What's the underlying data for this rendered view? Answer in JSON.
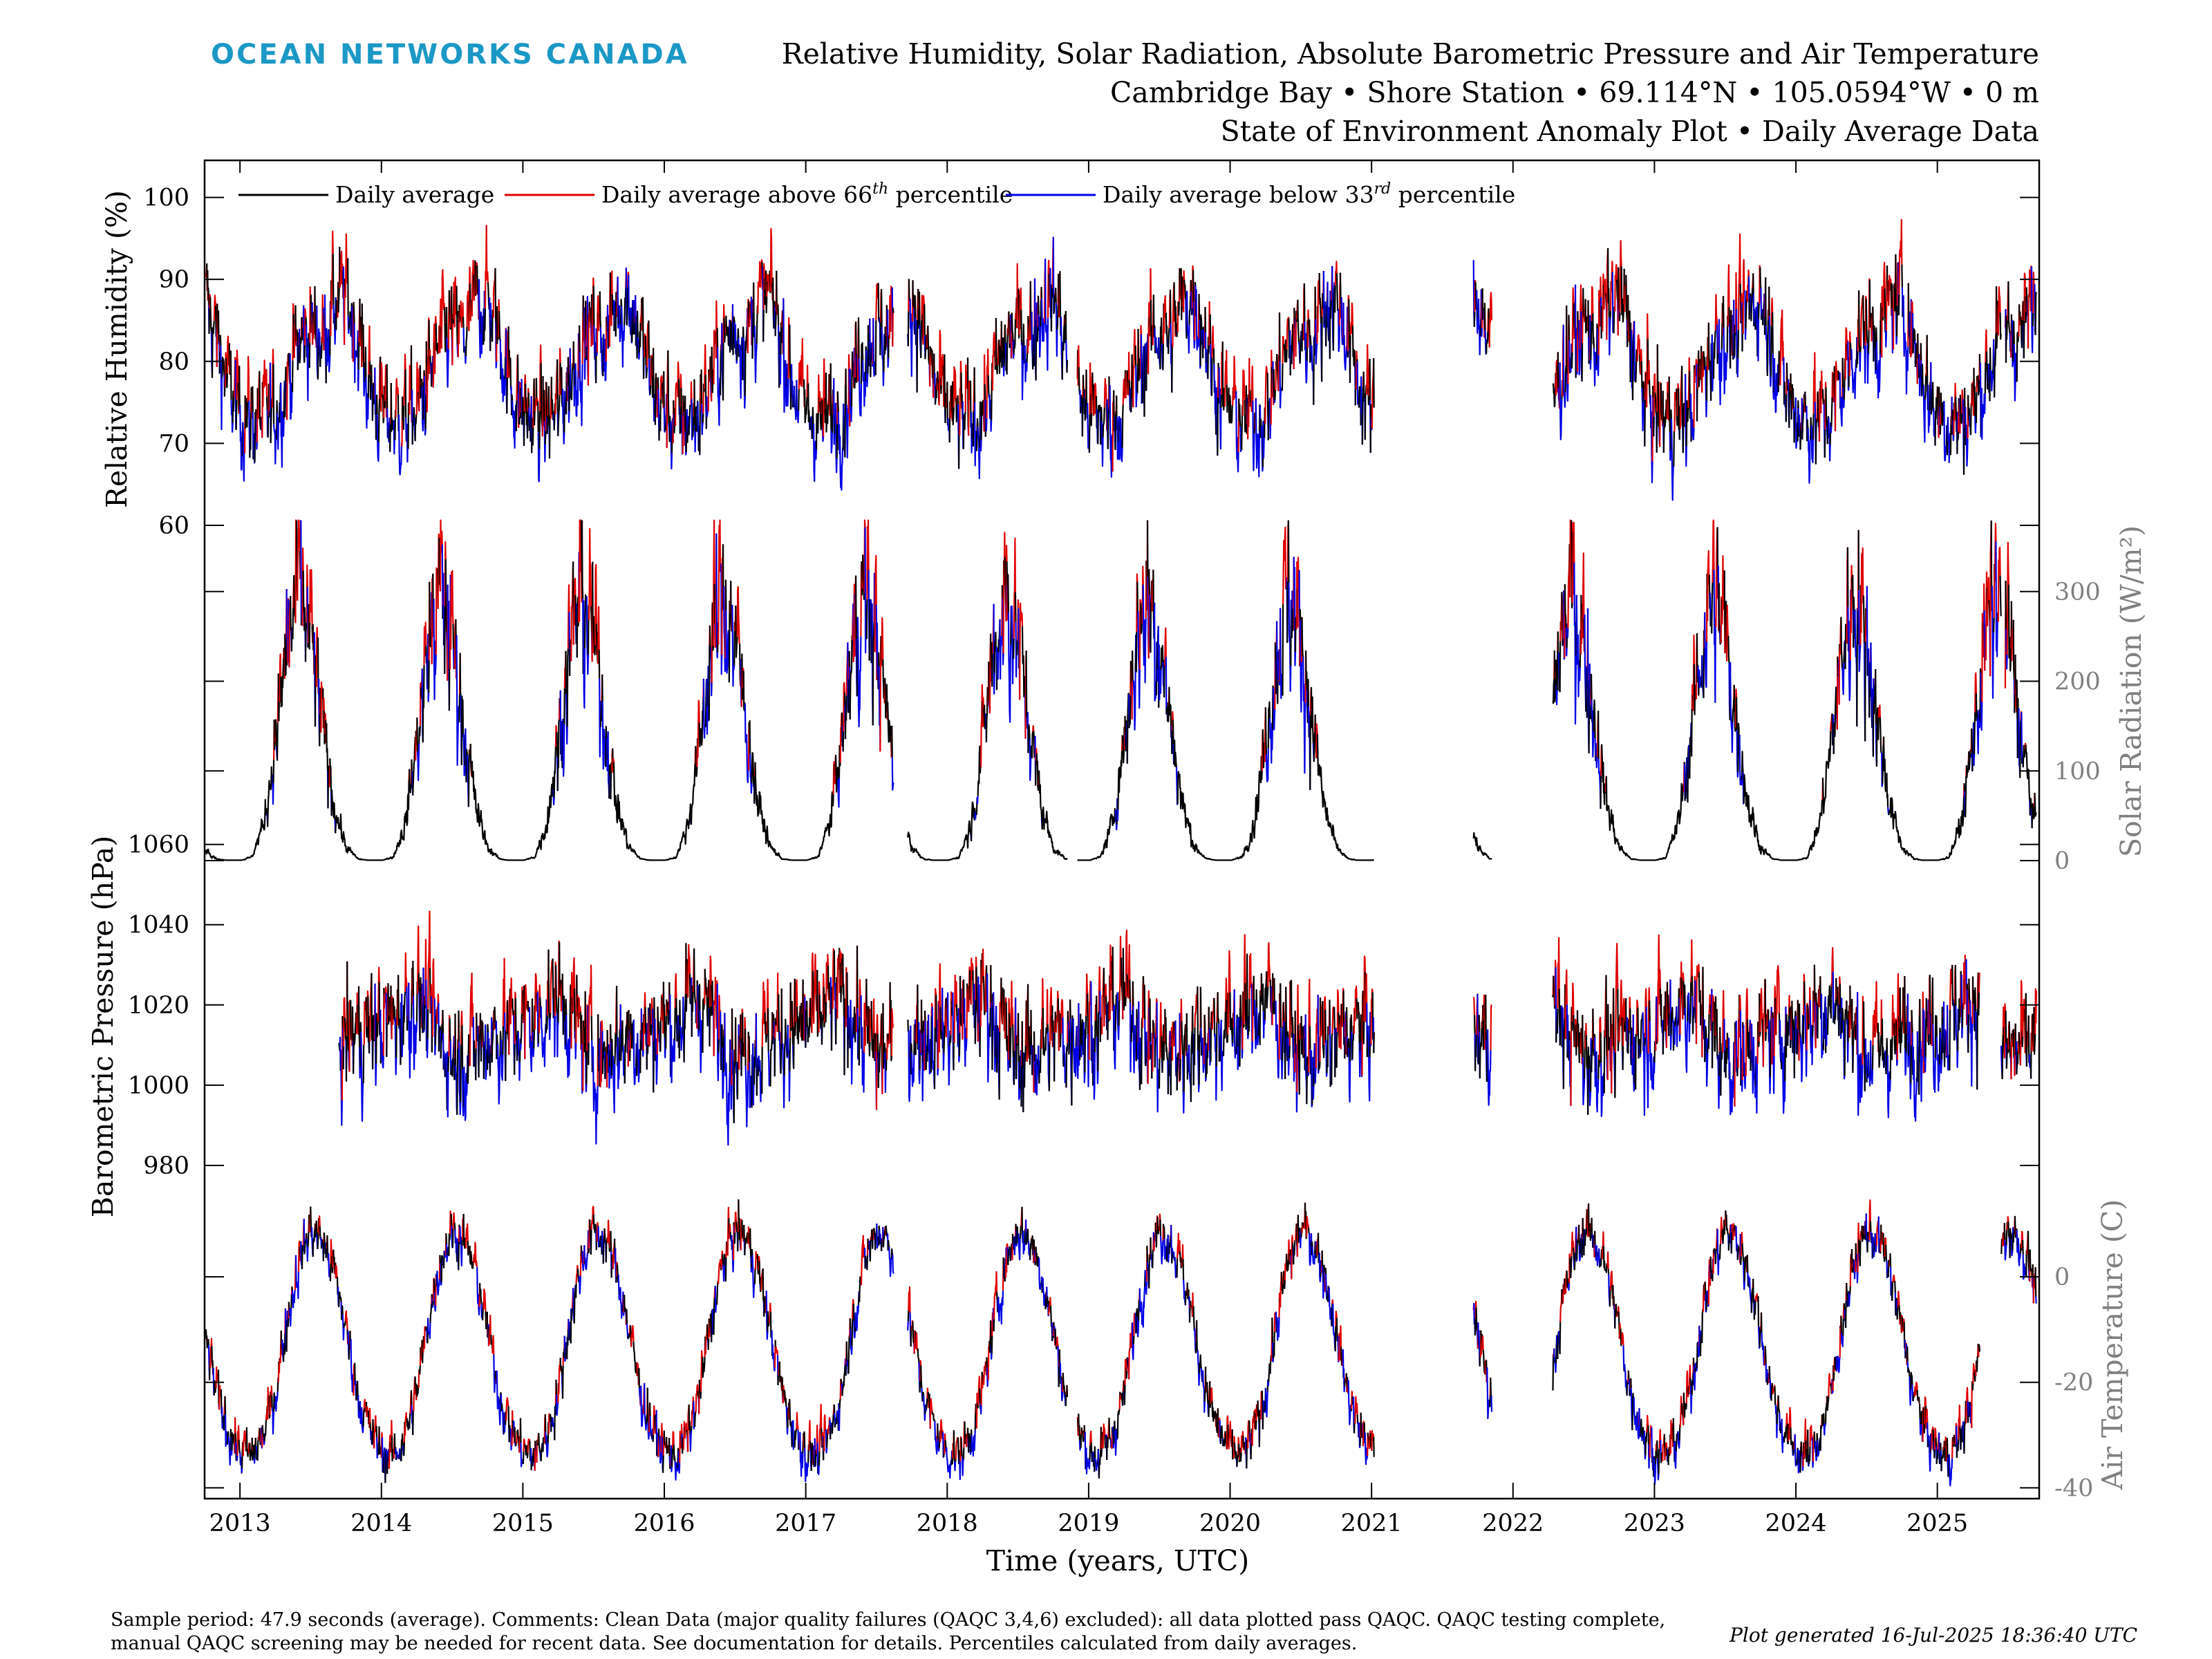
{
  "header": {
    "brand": "OCEAN NETWORKS CANADA",
    "title_lines": [
      "Relative Humidity, Solar Radiation, Absolute Barometric Pressure and Air Temperature",
      "Cambridge Bay • Shore Station • 69.114°N • 105.0594°W • 0 m",
      "State of Environment Anomaly Plot • Daily Average Data"
    ]
  },
  "legend": [
    {
      "label": "Daily average",
      "color": "#000000"
    },
    {
      "label": "Daily average above 66",
      "sup": "th",
      "suffix": " percentile",
      "color": "#e00000"
    },
    {
      "label": "Daily average below 33",
      "sup": "rd",
      "suffix": " percentile",
      "color": "#0000e6"
    }
  ],
  "footer": {
    "line1": "Sample period: 47.9 seconds (average). Comments: Clean Data (major quality failures (QAQC 3,4,6) excluded): all data plotted pass QAQC. QAQC testing complete,",
    "line2": "manual QAQC screening may be needed for recent data. See documentation for details. Percentiles calculated from daily averages.",
    "generated": "Plot generated 16-Jul-2025 18:36:40 UTC"
  },
  "colors": {
    "average": "#000000",
    "above": "#e00000",
    "below": "#0000e6",
    "right_axis": "#808080",
    "brand": "#1b98c5"
  },
  "chart_data": [
    {
      "type": "line",
      "name": "humidity",
      "ylabel": "Relative Humidity (%)",
      "y_axis_side": "left",
      "ylim": [
        60,
        103
      ],
      "yticks": [
        60,
        70,
        80,
        90,
        100
      ],
      "xlim": [
        2012.75,
        2025.72
      ],
      "data_gaps": [
        [
          2017.62,
          2017.72
        ],
        [
          2018.85,
          2018.92
        ],
        [
          2021.02,
          2021.72
        ],
        [
          2021.85,
          2022.28
        ],
        [
          2025.45,
          2025.48
        ]
      ],
      "seasonal_profile": {
        "month_start": "Jan",
        "values": [
          74,
          73,
          73,
          74,
          78,
          82,
          84,
          83,
          87,
          88,
          83,
          77
        ]
      },
      "day_to_day_variability": 4,
      "series_meaning": {
        "black": "daily average",
        "red": "above 66th percentile",
        "blue": "below 33rd percentile"
      }
    },
    {
      "type": "line",
      "name": "solar",
      "ylabel": "Solar Radiation (W/m²)",
      "y_axis_side": "right",
      "ylim": [
        0,
        380
      ],
      "yticks": [
        0,
        100,
        200,
        300
      ],
      "xlim": [
        2012.75,
        2025.72
      ],
      "data_gaps": [
        [
          2017.62,
          2017.72
        ],
        [
          2018.85,
          2018.92
        ],
        [
          2021.02,
          2021.72
        ],
        [
          2021.85,
          2022.28
        ],
        [
          2025.45,
          2025.48
        ]
      ],
      "seasonal_profile": {
        "month_start": "Jan",
        "values": [
          0,
          4,
          40,
          130,
          240,
          300,
          250,
          150,
          60,
          15,
          2,
          0
        ]
      },
      "day_to_day_variability": 45,
      "series_meaning": {
        "black": "daily average",
        "red": "above 66th percentile",
        "blue": "below 33rd percentile"
      }
    },
    {
      "type": "line",
      "name": "pressure",
      "ylabel": "Barometric Pressure (hPa)",
      "y_axis_side": "left",
      "ylim": [
        975,
        1062
      ],
      "yticks": [
        980,
        1000,
        1020,
        1040,
        1060
      ],
      "xlim": [
        2012.75,
        2025.72
      ],
      "data_start": 2013.7,
      "data_gaps": [
        [
          2017.62,
          2017.72
        ],
        [
          2021.02,
          2021.72
        ],
        [
          2021.85,
          2022.28
        ],
        [
          2025.3,
          2025.45
        ]
      ],
      "seasonal_profile": {
        "month_start": "Jan",
        "values": [
          1015,
          1016,
          1020,
          1022,
          1018,
          1012,
          1008,
          1008,
          1010,
          1012,
          1013,
          1014
        ]
      },
      "day_to_day_variability": 9,
      "series_meaning": {
        "black": "daily average",
        "red": "above 66th percentile",
        "blue": "below 33rd percentile"
      }
    },
    {
      "type": "line",
      "name": "temperature",
      "ylabel": "Air Temperature (C)",
      "y_axis_side": "right",
      "xlabel": "Time (years, UTC)",
      "ylim": [
        -41,
        16
      ],
      "yticks": [
        -40,
        -20,
        0
      ],
      "xlim": [
        2012.75,
        2025.72
      ],
      "xticks": [
        "2013",
        "2014",
        "2015",
        "2016",
        "2017",
        "2018",
        "2019",
        "2020",
        "2021",
        "2022",
        "2023",
        "2024",
        "2025"
      ],
      "data_gaps": [
        [
          2017.62,
          2017.72
        ],
        [
          2018.85,
          2018.92
        ],
        [
          2021.02,
          2021.72
        ],
        [
          2021.85,
          2022.28
        ],
        [
          2025.3,
          2025.45
        ]
      ],
      "seasonal_profile": {
        "month_start": "Jan",
        "values": [
          -33,
          -34,
          -30,
          -22,
          -8,
          3,
          9,
          7,
          1,
          -10,
          -22,
          -29
        ]
      },
      "day_to_day_variability": 3,
      "series_meaning": {
        "black": "daily average",
        "red": "above 66th percentile",
        "blue": "below 33rd percentile"
      }
    }
  ]
}
